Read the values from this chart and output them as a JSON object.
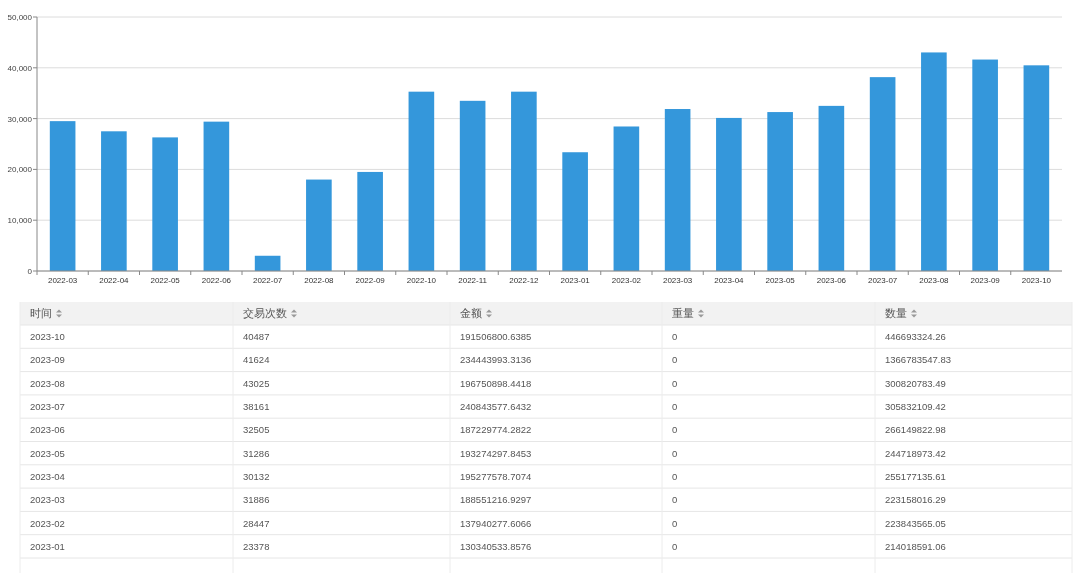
{
  "chart_data": {
    "type": "bar",
    "categories": [
      "2022-03",
      "2022-04",
      "2022-05",
      "2022-06",
      "2022-07",
      "2022-08",
      "2022-09",
      "2022-10",
      "2022-11",
      "2022-12",
      "2023-01",
      "2023-02",
      "2023-03",
      "2023-04",
      "2023-05",
      "2023-06",
      "2023-07",
      "2023-08",
      "2023-09",
      "2023-10"
    ],
    "values": [
      29500,
      27500,
      26300,
      29400,
      3000,
      18000,
      19500,
      35300,
      33500,
      35300,
      23378,
      28447,
      31886,
      30132,
      31286,
      32505,
      38161,
      43025,
      41624,
      40487
    ],
    "color": "#3497db",
    "ylim": [
      0,
      50000
    ],
    "yticks": [
      {
        "value": 0,
        "label": "0"
      },
      {
        "value": 10000,
        "label": "10,000"
      },
      {
        "value": 20000,
        "label": "20,000"
      },
      {
        "value": 30000,
        "label": "30,000"
      },
      {
        "value": 40000,
        "label": "40,000"
      },
      {
        "value": 50000,
        "label": "50,000"
      }
    ],
    "grid": "y",
    "annotations": [
      "时间",
      "交易次数",
      "金额",
      "重量",
      "数量",
      "2023-10",
      "40487",
      "191506800.6385",
      "0",
      "446693324.26",
      "2023-09",
      "41624",
      "234443993.3136",
      "0",
      "1366783547.83",
      "2023-08",
      "43025",
      "196750898.4418",
      "0",
      "300820783.49",
      "2023-07",
      "38161",
      "240843577.6432",
      "0",
      "305832109.42",
      "2023-06",
      "32505",
      "187229774.2822",
      "0",
      "266149822.98",
      "2023-05",
      "31286",
      "193274297.8453",
      "0",
      "244718973.42",
      "2023-04",
      "30132",
      "195277578.7074",
      "0",
      "255177135.61",
      "2023-03",
      "31886",
      "188551216.9297",
      "0",
      "223158016.29",
      "2023-02",
      "28447",
      "137940277.6066",
      "0",
      "223843565.05",
      "2023-01",
      "23378",
      "130340533.8576",
      "0",
      "214018591.06"
    ]
  }
}
